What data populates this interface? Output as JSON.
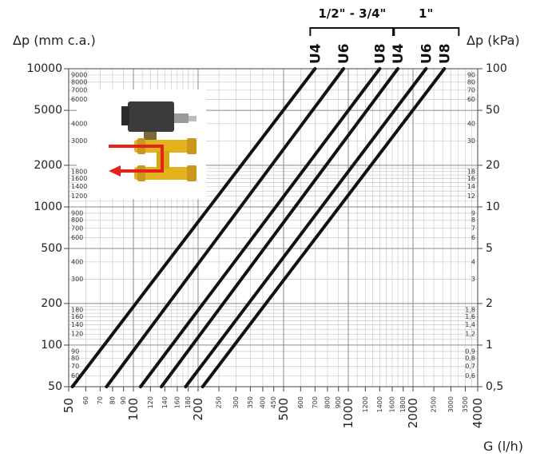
{
  "chart_data": {
    "type": "line",
    "xscale": "log",
    "yscale": "log",
    "xlim": [
      50,
      4000
    ],
    "ylim": [
      50,
      10000
    ],
    "xlabel": "G (l/h)",
    "ylabel_left": "Δp (mm c.a.)",
    "ylabel_right": "Δp (kPa)",
    "grid": true,
    "x_ticks_major": [
      "50",
      "100",
      "200",
      "500",
      "1000",
      "2000",
      "4000"
    ],
    "x_ticks_minor": [
      "60",
      "70",
      "80",
      "90",
      "120",
      "140",
      "160",
      "180",
      "250",
      "300",
      "350",
      "400",
      "450",
      "600",
      "700",
      "800",
      "900",
      "1200",
      "1400",
      "1600",
      "1800",
      "2500",
      "3000",
      "3500"
    ],
    "y_left_ticks_major": [
      "10000",
      "5000",
      "2000",
      "1000",
      "500",
      "200",
      "100",
      "50"
    ],
    "y_left_ticks_minor": [
      "9000",
      "8000",
      "7000",
      "6000",
      "4000",
      "3000",
      "1800",
      "1600",
      "1400",
      "1200",
      "900",
      "800",
      "700",
      "600",
      "400",
      "300",
      "180",
      "160",
      "140",
      "120",
      "90",
      "80",
      "70",
      "60"
    ],
    "y_right_ticks_major": [
      "100",
      "50",
      "20",
      "10",
      "5",
      "2",
      "1",
      "0,5"
    ],
    "y_right_ticks_minor": [
      "90",
      "80",
      "70",
      "60",
      "40",
      "30",
      "18",
      "16",
      "14",
      "12",
      "9",
      "8",
      "7",
      "6",
      "4",
      "3",
      "1,8",
      "1,6",
      "1,4",
      "1,2",
      "0,9",
      "0,8",
      "0,7",
      "0,6"
    ],
    "size_groups": [
      {
        "label": "1/2\" - 3/4\"",
        "series": [
          "U4",
          "U6",
          "U8"
        ]
      },
      {
        "label": "1\"",
        "series": [
          "U4",
          "U6",
          "U8"
        ]
      }
    ],
    "series": [
      {
        "name": "U4",
        "group": "1/2\" - 3/4\"",
        "x": [
          52,
          700
        ],
        "y": [
          50,
          10000
        ]
      },
      {
        "name": "U6",
        "group": "1/2\" - 3/4\"",
        "x": [
          75,
          950
        ],
        "y": [
          50,
          10000
        ]
      },
      {
        "name": "U8",
        "group": "1/2\" - 3/4\"",
        "x": [
          108,
          1400
        ],
        "y": [
          50,
          10000
        ]
      },
      {
        "name": "U4",
        "group": "1\"",
        "x": [
          135,
          1700
        ],
        "y": [
          50,
          10000
        ]
      },
      {
        "name": "U6",
        "group": "1\"",
        "x": [
          175,
          2300
        ],
        "y": [
          50,
          10000
        ]
      },
      {
        "name": "U8",
        "group": "1\"",
        "x": [
          210,
          2800
        ],
        "y": [
          50,
          10000
        ]
      }
    ]
  }
}
